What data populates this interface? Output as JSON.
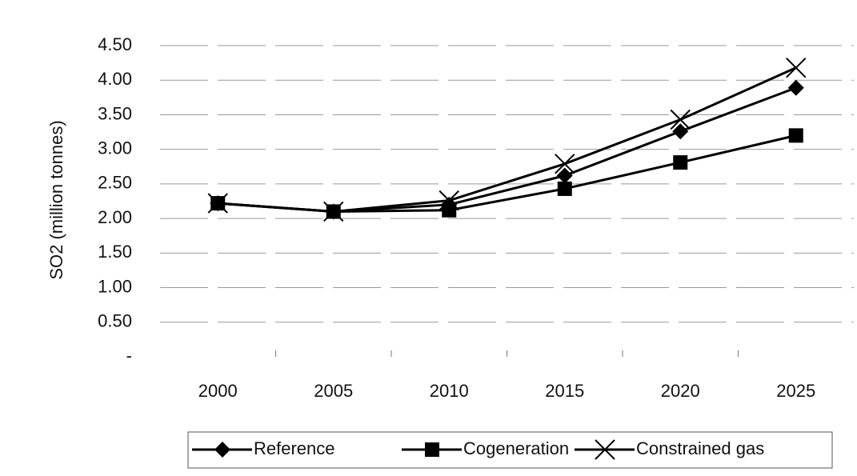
{
  "chart_data": {
    "type": "line",
    "y_label": "SO2 (million tonnes)",
    "categories": [
      "2000",
      "2005",
      "2010",
      "2015",
      "2020",
      "2025"
    ],
    "series": [
      {
        "name": "Reference",
        "color": "#000000",
        "marker": "diamond",
        "values": [
          2.22,
          2.1,
          2.2,
          2.62,
          3.26,
          3.89
        ]
      },
      {
        "name": "Cogeneration",
        "color": "#000000",
        "marker": "square",
        "values": [
          2.22,
          2.1,
          2.12,
          2.43,
          2.81,
          3.2
        ]
      },
      {
        "name": "Constrained gas",
        "color": "#000000",
        "marker": "x",
        "values": [
          2.22,
          2.1,
          2.26,
          2.79,
          3.43,
          4.18
        ]
      }
    ],
    "ylim": [
      0,
      4.5
    ],
    "yticks": [
      {
        "value": 0,
        "label": "-"
      },
      {
        "value": 0.5,
        "label": "0.50"
      },
      {
        "value": 1,
        "label": "1.00"
      },
      {
        "value": 1.5,
        "label": "1.50"
      },
      {
        "value": 2,
        "label": "2.00"
      },
      {
        "value": 2.5,
        "label": "2.50"
      },
      {
        "value": 3,
        "label": "3.00"
      },
      {
        "value": 3.5,
        "label": "3.50"
      },
      {
        "value": 4,
        "label": "4.00"
      },
      {
        "value": 4.5,
        "label": "4.50"
      }
    ],
    "grid": true,
    "legend": "bottom"
  }
}
